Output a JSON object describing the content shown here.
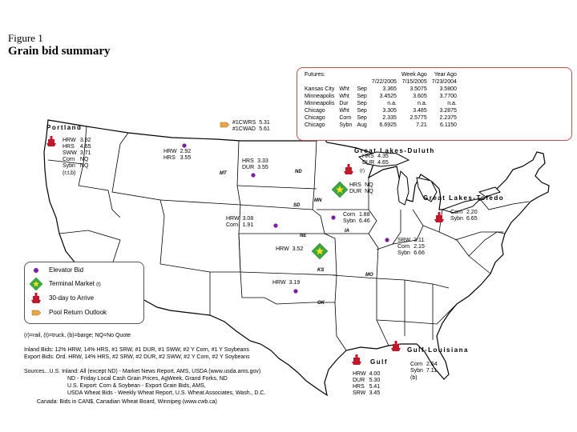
{
  "figure": {
    "label": "Figure 1",
    "title": "Grain bid summary"
  },
  "futures": {
    "title": "Futures:",
    "dates": [
      "7/22/2005",
      "7/15/2005",
      "7/23/2004"
    ],
    "headers": [
      "",
      "Week Ago",
      "Year Ago"
    ],
    "rows": [
      [
        "Kansas City",
        "Wht",
        "Sep",
        "3.365",
        "3.5075",
        "3.5800"
      ],
      [
        "Minneapolis",
        "Wht",
        "Sep",
        "3.4525",
        "3.605",
        "3.7700"
      ],
      [
        "Minneapolis",
        "Dur",
        "Sep",
        "n.a.",
        "n.a.",
        "n.a."
      ],
      [
        "Chicago",
        "Wht",
        "Sep",
        "3.305",
        "3.485",
        "3.2875"
      ],
      [
        "Chicago",
        "Corn",
        "Sep",
        "2.335",
        "2.5775",
        "2.2375"
      ],
      [
        "Chicago",
        "Sybn",
        "Aug",
        "6.6925",
        "7.21",
        "6.1150"
      ]
    ]
  },
  "markets": {
    "portland": "Portland",
    "duluth": "Great Lakes-Duluth",
    "toledo": "Great Lakes-Toledo",
    "gulf": "Gulf",
    "gulf_louisiana": "Gulf-Louisiana"
  },
  "states": {
    "mt": "MT",
    "nd": "ND",
    "sd": "SD",
    "mn": "MN",
    "ne": "NE",
    "ia": "IA",
    "ks": "KS",
    "mo": "MO",
    "ok": "OK"
  },
  "bids": {
    "canada": [
      [
        "#1CWRS",
        "5.31"
      ],
      [
        "#1CWAD",
        "5.61"
      ]
    ],
    "portland": {
      "rows": [
        [
          "HRW",
          "3.92"
        ],
        [
          "HRS",
          "4.65"
        ],
        [
          "SWW",
          "3.71"
        ],
        [
          "Corn",
          "NQ"
        ],
        [
          "Sybn",
          "NQ"
        ]
      ],
      "note": "(r,t,b)"
    },
    "montana": [
      [
        "HRW",
        "2.92"
      ],
      [
        "HRS",
        "3.55"
      ]
    ],
    "north_dakota": [
      [
        "HRS",
        "3.33"
      ],
      [
        "DUR",
        "3.55"
      ]
    ],
    "duluth": {
      "rows": [
        [
          "HRS",
          "4.35"
        ],
        [
          "DUR",
          "4.65"
        ]
      ],
      "note": "(r)"
    },
    "minn_terminal": [
      [
        "HRS",
        "NQ"
      ],
      [
        "DUR",
        "NQ"
      ]
    ],
    "toledo": [
      [
        "Corn",
        "2.20"
      ],
      [
        "Sybn",
        "6.65"
      ]
    ],
    "iowa": [
      [
        "Corn",
        "1.88"
      ],
      [
        "Sybn",
        "6.46"
      ]
    ],
    "nebraska": [
      [
        "HRW",
        "3.08"
      ],
      [
        "Corn",
        "1.91"
      ]
    ],
    "kansas": [
      [
        "HRW",
        "3.52"
      ]
    ],
    "illinois": [
      [
        "SRW",
        "3.11"
      ],
      [
        "Corn",
        "2.15"
      ],
      [
        "Sybn",
        "6.66"
      ]
    ],
    "oklahoma": [
      [
        "HRW",
        "3.19"
      ]
    ],
    "gulf": {
      "rows": [
        [
          "HRW",
          "4.00"
        ],
        [
          "DUR",
          "5.30"
        ],
        [
          "HRS",
          "5.41"
        ],
        [
          "SRW",
          "3.45"
        ]
      ]
    },
    "gulf_louisiana": {
      "rows": [
        [
          "Corn",
          "2.64"
        ],
        [
          "Sybn",
          "7.11"
        ]
      ],
      "note": "(b)"
    }
  },
  "legend": {
    "elevator": "Elevator Bid",
    "terminal": "Terminal Market",
    "terminal_note": "(t)",
    "arrive": "30-day to Arrive",
    "pool": "Pool Return Outlook"
  },
  "notes": {
    "codes": "(r)=rail, (t)=truck, (b)=barge;  NQ=No Quote",
    "inland": "Inland Bids: 12%  HRW, 14% HRS, #1 SRW, #1 DUR, #1 SWW, #2 Y Corn, #1 Y Soybeans",
    "export": "Export Bids: Ord. HRW, 14% HRS, #2 SRW, #2 DUR, #2 SWW, #2 Y Corn, #2 Y Soybeans",
    "sources": [
      "Sources...U.S. Inland:  All (except ND) - Market News Report, AMS, USDA (www.usda.ams.gov)",
      "ND - Friday Local Cash Grain Prices, AgWeek, Grand Forks, ND",
      "U.S. Export: Corn & Soybean  - Export Grain Bids, AMS,",
      "USDA Wheat Bids - Weekly Wheat Report, U.S. Wheat Associates, Wash., D.C.",
      "Canada:  Bids in CAN$, Canadian Wheat Board, Winnipeg (www.cwb.ca)"
    ]
  },
  "colors": {
    "futures_border": "#c0504d",
    "elevator": "#7b1fa2",
    "terminal": "#3aa641",
    "arrive": "#c0182a",
    "pool": "#e8a64a"
  }
}
